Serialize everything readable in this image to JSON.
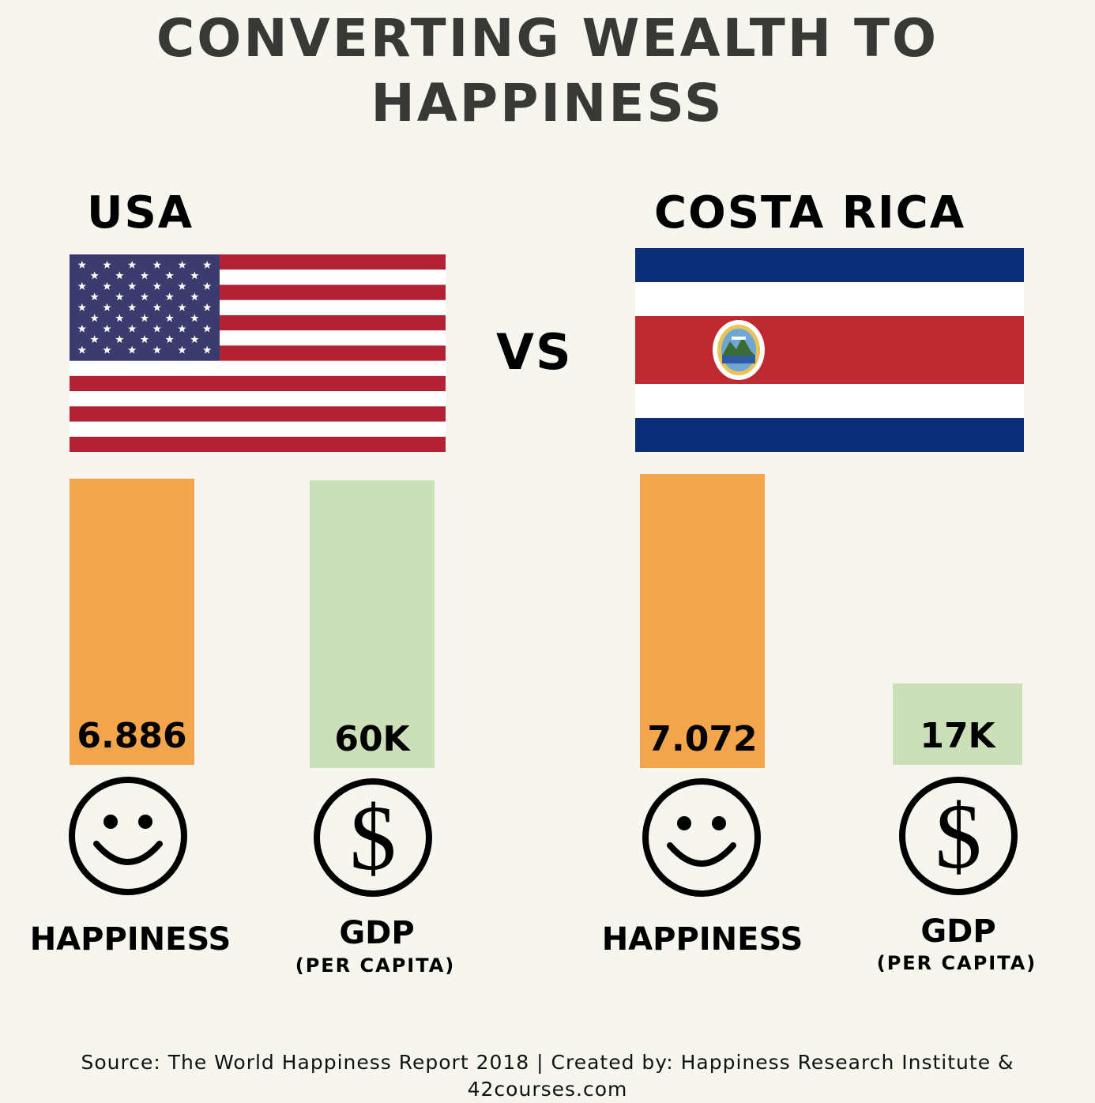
{
  "title": "CONVERTING WEALTH TO HAPPINESS",
  "title_lines": [
    "CONVERTING WEALTH TO",
    "HAPPINESS"
  ],
  "vs_label": "VS",
  "countries": [
    {
      "name": "USA",
      "flag": "usa-flag"
    },
    {
      "name": "COSTA RICA",
      "flag": "costa-rica-flag"
    }
  ],
  "labels": {
    "happiness": "HAPPINESS",
    "gdp": "GDP",
    "per_capita": "(PER CAPITA)"
  },
  "source": "Source: The World Happiness Report 2018 | Created by: Happiness Research Institute & 42courses.com",
  "colors": {
    "background": "#f6f5ee",
    "happiness_bar": "#f2a54b",
    "gdp_bar": "#cbe0b9",
    "title": "#383936"
  },
  "chart_data": {
    "type": "bar",
    "categories": [
      "USA HAPPINESS",
      "USA GDP (PER CAPITA)",
      "COSTA RICA HAPPINESS",
      "COSTA RICA GDP (PER CAPITA)"
    ],
    "series": [
      {
        "name": "HAPPINESS",
        "values": [
          6.886,
          null,
          7.072,
          null
        ],
        "labels": [
          "6.886",
          "",
          "7.072",
          ""
        ]
      },
      {
        "name": "GDP",
        "values": [
          null,
          60,
          null,
          17
        ],
        "labels": [
          "",
          "60K",
          "",
          "17K"
        ],
        "unit": "K"
      }
    ],
    "bars": [
      {
        "group": "USA",
        "metric": "happiness",
        "value": 6.886,
        "label": "6.886"
      },
      {
        "group": "USA",
        "metric": "gdp",
        "value": 60,
        "label": "60K"
      },
      {
        "group": "COSTA RICA",
        "metric": "happiness",
        "value": 7.072,
        "label": "7.072"
      },
      {
        "group": "COSTA RICA",
        "metric": "gdp",
        "value": 17,
        "label": "17K"
      }
    ],
    "icons": [
      "smiley-icon",
      "dollar-icon",
      "smiley-icon",
      "dollar-icon"
    ],
    "grid": false,
    "legend": "none"
  }
}
